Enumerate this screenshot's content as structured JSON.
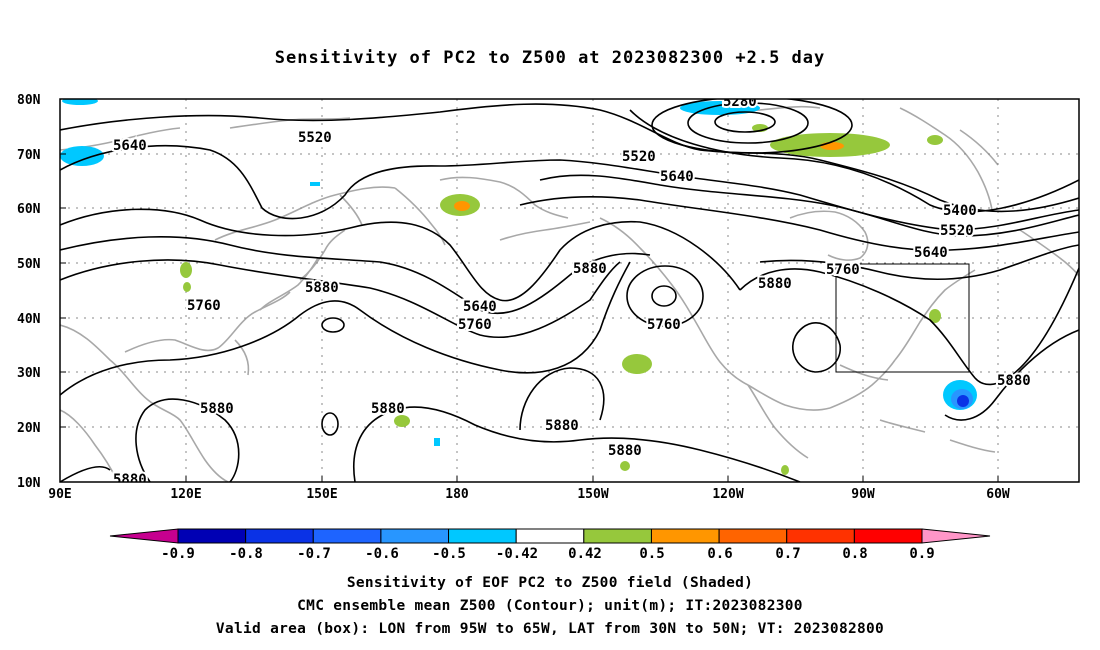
{
  "title": "Sensitivity of PC2 to Z500 at 2023082300 +2.5 day",
  "lat_labels": [
    "80N",
    "70N",
    "60N",
    "50N",
    "40N",
    "30N",
    "20N",
    "10N"
  ],
  "lon_labels": [
    "90E",
    "120E",
    "150E",
    "180",
    "150W",
    "120W",
    "90W",
    "60W"
  ],
  "contour_labels": {
    "c5520a": "5520",
    "c5640a": "5640",
    "c5520b": "5520",
    "c5640b": "5640",
    "c5280": "5280",
    "c5400": "5400",
    "c5520c": "5520",
    "c5640c": "5640",
    "c5760a": "5760",
    "c5880a": "5880",
    "c5880b": "5880",
    "c5880c": "5880",
    "c5760b": "5760",
    "c5640d": "5640",
    "c5760c": "5760",
    "c5760d": "5760",
    "c5880d": "5880",
    "c5880e": "5880",
    "c5880f": "5880",
    "c5880g": "5880",
    "c5880h": "5880",
    "c5880i": "5880"
  },
  "colorbar": {
    "labels": [
      "-0.9",
      "-0.8",
      "-0.7",
      "-0.6",
      "-0.5",
      "-0.42",
      "0.42",
      "0.5",
      "0.6",
      "0.7",
      "0.8",
      "0.9"
    ],
    "colors": [
      "#c6008f",
      "#0000b4",
      "#0a32e6",
      "#1e64ff",
      "#2896ff",
      "#00c8ff",
      "#ffffff",
      "#96c83c",
      "#ff9600",
      "#ff6400",
      "#ff3200",
      "#ff0000",
      "#ff96c8"
    ]
  },
  "captions": {
    "line1": "Sensitivity of EOF PC2 to Z500 field (Shaded)",
    "line2": "CMC ensemble mean Z500 (Contour); unit(m); IT:2023082300",
    "line3": "Valid area (box): LON from 95W to 65W, LAT from 30N to 50N; VT: 2023082800"
  }
}
